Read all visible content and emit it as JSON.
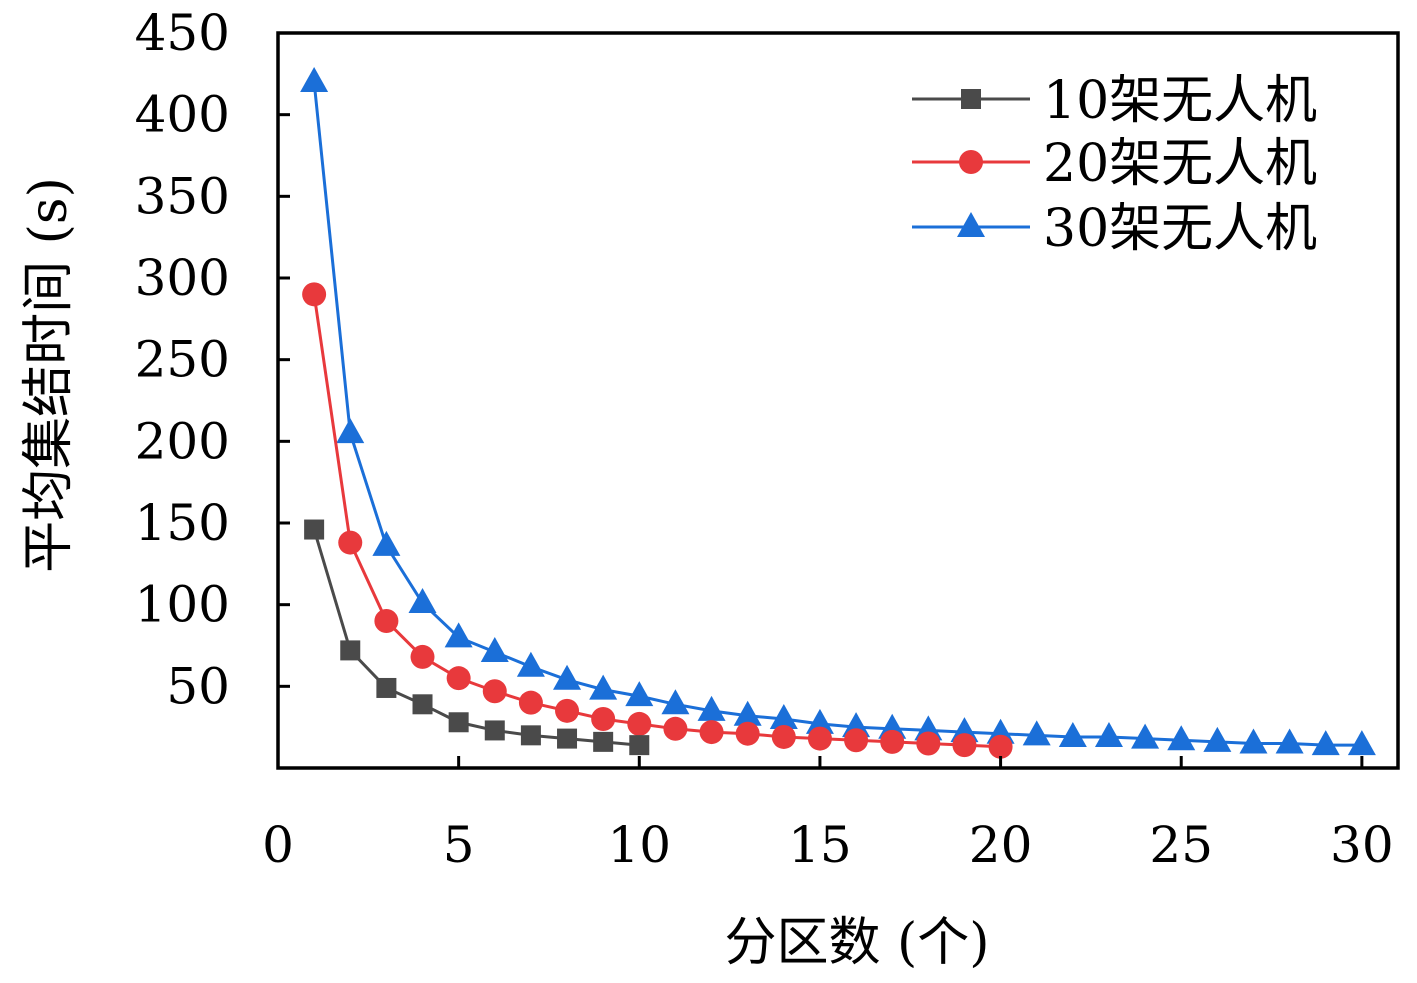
{
  "chart_data": {
    "type": "line",
    "xlabel": "分区数 (个)",
    "ylabel": "平均集结时间 (s)",
    "xlim": [
      0,
      31
    ],
    "ylim": [
      0,
      450
    ],
    "x_ticks": [
      0,
      5,
      10,
      15,
      20,
      25,
      30
    ],
    "y_ticks": [
      50,
      100,
      150,
      200,
      250,
      300,
      350,
      400,
      450
    ],
    "grid": false,
    "legend_position": "top-right",
    "series": [
      {
        "name": "10架无人机",
        "color": "#4a4a4a",
        "marker": "square",
        "x": [
          1,
          2,
          3,
          4,
          5,
          6,
          7,
          8,
          9,
          10
        ],
        "y": [
          146,
          72,
          49,
          39,
          28,
          23,
          20,
          18,
          16,
          14
        ]
      },
      {
        "name": "20架无人机",
        "color": "#e8393c",
        "marker": "circle",
        "x": [
          1,
          2,
          3,
          4,
          5,
          6,
          7,
          8,
          9,
          10,
          11,
          12,
          13,
          14,
          15,
          16,
          17,
          18,
          19,
          20
        ],
        "y": [
          290,
          138,
          90,
          68,
          55,
          47,
          40,
          35,
          30,
          27,
          24,
          22,
          21,
          19,
          18,
          17,
          16,
          15,
          14,
          13
        ]
      },
      {
        "name": "30架无人机",
        "color": "#1b6fd8",
        "marker": "triangle",
        "x": [
          1,
          2,
          3,
          4,
          5,
          6,
          7,
          8,
          9,
          10,
          11,
          12,
          13,
          14,
          15,
          16,
          17,
          18,
          19,
          20,
          21,
          22,
          23,
          24,
          25,
          26,
          27,
          28,
          29,
          30
        ],
        "y": [
          420,
          205,
          136,
          101,
          80,
          71,
          62,
          54,
          48,
          44,
          39,
          35,
          32,
          30,
          27,
          25,
          24,
          23,
          22,
          21,
          20,
          19,
          19,
          18,
          17,
          16,
          15,
          15,
          14,
          14
        ]
      }
    ]
  }
}
